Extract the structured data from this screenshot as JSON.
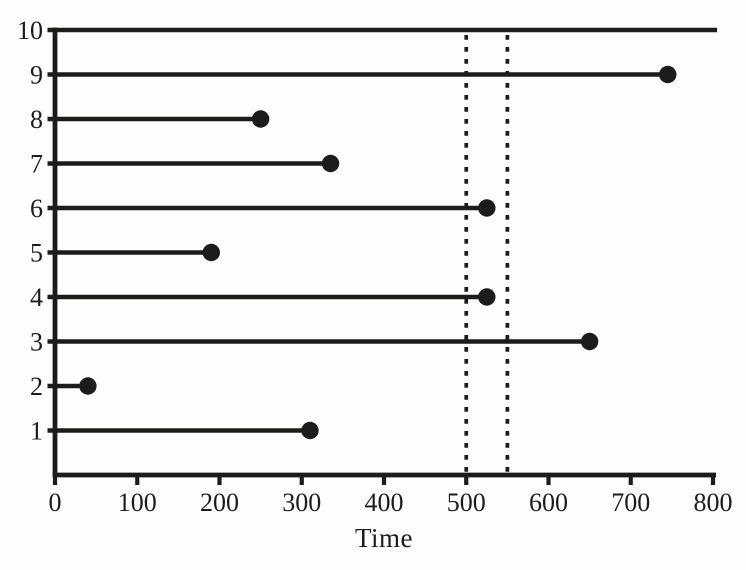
{
  "chart_data": {
    "type": "scatter",
    "variant": "horizontal-lollipop-event-plot",
    "title": "",
    "xlabel": "Time",
    "ylabel": "",
    "xlim": [
      0,
      800
    ],
    "ylim": [
      0,
      10
    ],
    "x_ticks": [
      0,
      100,
      200,
      300,
      400,
      500,
      600,
      700,
      800
    ],
    "y_ticks": [
      1,
      2,
      3,
      4,
      5,
      6,
      7,
      8,
      9,
      10
    ],
    "grid": false,
    "legend": false,
    "rows": [
      {
        "label": "1",
        "value": 310,
        "marker": true
      },
      {
        "label": "2",
        "value": 40,
        "marker": true
      },
      {
        "label": "3",
        "value": 650,
        "marker": true
      },
      {
        "label": "4",
        "value": 525,
        "marker": true
      },
      {
        "label": "5",
        "value": 190,
        "marker": true
      },
      {
        "label": "6",
        "value": 525,
        "marker": true
      },
      {
        "label": "7",
        "value": 335,
        "marker": true
      },
      {
        "label": "8",
        "value": 250,
        "marker": true
      },
      {
        "label": "9",
        "value": 745,
        "marker": true
      },
      {
        "label": "10",
        "value": 805,
        "marker": false
      }
    ],
    "reference_lines": [
      {
        "x": 500,
        "style": "dotted"
      },
      {
        "x": 550,
        "style": "dotted"
      }
    ],
    "colors": {
      "stroke": "#1c1c1c",
      "background": "#fdfdfc"
    }
  }
}
